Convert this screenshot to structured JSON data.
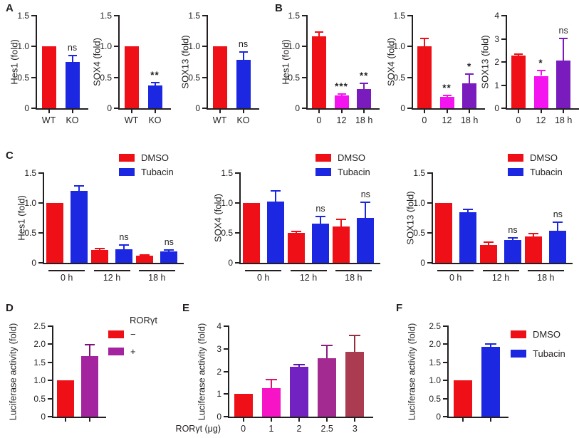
{
  "figure": {
    "panels": [
      "A",
      "B",
      "C",
      "D",
      "E",
      "F"
    ]
  },
  "colors": {
    "red": "#ee1016",
    "blue": "#1b27e0",
    "magenta": "#f414ef",
    "violet": "#7a1cbd",
    "purple": "#a424a0",
    "pink": "#f614c6",
    "plum": "#a32a90",
    "brick": "#aa3b50",
    "axis": "#231f20"
  },
  "chart_data": [
    {
      "panel": "A",
      "type": "bar",
      "ylabel": "Hes1 (fold)",
      "ylim": [
        0,
        1.5
      ],
      "tick_values": [
        0,
        0.5,
        1,
        1.5
      ],
      "tick_labels": [
        "0",
        "0.5",
        "1.0",
        "1.5"
      ],
      "categories": [
        "WT",
        "KO"
      ],
      "values": [
        1.0,
        0.75
      ],
      "errors": [
        0,
        0.1
      ],
      "sig": [
        "",
        "ns"
      ],
      "colors": [
        "#ee1016",
        "#1b27e0"
      ]
    },
    {
      "panel": "A",
      "type": "bar",
      "ylabel": "SOX4 (fold)",
      "ylim": [
        0,
        1.5
      ],
      "tick_values": [
        0,
        0.5,
        1,
        1.5
      ],
      "tick_labels": [
        "0",
        "0.5",
        "1.0",
        "1.5"
      ],
      "categories": [
        "WT",
        "KO"
      ],
      "values": [
        1.0,
        0.37
      ],
      "errors": [
        0,
        0.05
      ],
      "sig": [
        "",
        "**"
      ],
      "colors": [
        "#ee1016",
        "#1b27e0"
      ]
    },
    {
      "panel": "A",
      "type": "bar",
      "ylabel": "SOX13 (fold)",
      "ylim": [
        0,
        1.5
      ],
      "tick_values": [
        0,
        0.5,
        1,
        1.5
      ],
      "tick_labels": [
        "0",
        "0.5",
        "1.0",
        "1.5"
      ],
      "categories": [
        "WT",
        "KO"
      ],
      "values": [
        1.0,
        0.78
      ],
      "errors": [
        0,
        0.13
      ],
      "sig": [
        "",
        "ns"
      ],
      "colors": [
        "#ee1016",
        "#1b27e0"
      ]
    },
    {
      "panel": "B",
      "type": "bar",
      "ylabel": "Hes1 (fold)",
      "ylim": [
        0,
        1.5
      ],
      "tick_values": [
        0,
        0.5,
        1,
        1.5
      ],
      "tick_labels": [
        "0",
        "0.5",
        "1.0",
        "1.5"
      ],
      "categories": [
        "0",
        "12",
        "18 h"
      ],
      "values": [
        1.17,
        0.21,
        0.31
      ],
      "errors": [
        0.06,
        0.02,
        0.09
      ],
      "sig": [
        "",
        "***",
        "**"
      ],
      "colors": [
        "#ee1016",
        "#f414ef",
        "#7a1cbd"
      ]
    },
    {
      "panel": "B",
      "type": "bar",
      "ylabel": "SOX4 (fold)",
      "ylim": [
        0,
        1.5
      ],
      "tick_values": [
        0,
        0.5,
        1,
        1.5
      ],
      "tick_labels": [
        "0",
        "0.5",
        "1.0",
        "1.5"
      ],
      "categories": [
        "0",
        "12",
        "18 h"
      ],
      "values": [
        1.0,
        0.19,
        0.4
      ],
      "errors": [
        0.13,
        0.02,
        0.15
      ],
      "sig": [
        "",
        "**",
        "*"
      ],
      "colors": [
        "#ee1016",
        "#f414ef",
        "#7a1cbd"
      ]
    },
    {
      "panel": "B",
      "type": "bar",
      "ylabel": "SOX13 (fold)",
      "ylim": [
        0,
        4
      ],
      "tick_values": [
        0,
        1,
        2,
        3,
        4
      ],
      "tick_labels": [
        "0",
        "1",
        "2",
        "3",
        "4"
      ],
      "categories": [
        "0",
        "12",
        "18 h"
      ],
      "values": [
        2.27,
        1.4,
        2.05
      ],
      "errors": [
        0.07,
        0.22,
        0.97
      ],
      "sig": [
        "",
        "*",
        "ns"
      ],
      "colors": [
        "#ee1016",
        "#f414ef",
        "#7a1cbd"
      ]
    },
    {
      "panel": "C",
      "type": "bar",
      "ylabel": "Hes1 (fold)",
      "ylim": [
        0,
        1.5
      ],
      "tick_values": [
        0,
        0.5,
        1,
        1.5
      ],
      "tick_labels": [
        "0",
        "0.5",
        "1.0",
        "1.5"
      ],
      "categories": [
        "0 h",
        "12 h",
        "18 h"
      ],
      "group_labels": true,
      "series": [
        {
          "name": "DMSO",
          "color": "#ee1016",
          "values": [
            1.0,
            0.21,
            0.12
          ],
          "errors": [
            0,
            0.03,
            0.015
          ],
          "sig": [
            "",
            "",
            ""
          ]
        },
        {
          "name": "Tubacin",
          "color": "#1b27e0",
          "values": [
            1.2,
            0.23,
            0.19
          ],
          "errors": [
            0.08,
            0.07,
            0.03
          ],
          "sig": [
            "",
            "ns",
            "ns"
          ]
        }
      ],
      "legend": {
        "entries": [
          {
            "label": "DMSO",
            "color": "#ee1016"
          },
          {
            "label": "Tubacin",
            "color": "#1b27e0"
          }
        ]
      }
    },
    {
      "panel": "C",
      "type": "bar",
      "ylabel": "SOX4 (fold)",
      "ylim": [
        0,
        1.5
      ],
      "tick_values": [
        0,
        0.5,
        1,
        1.5
      ],
      "tick_labels": [
        "0",
        "0.5",
        "1.0",
        "1.5"
      ],
      "categories": [
        "0 h",
        "12 h",
        "18 h"
      ],
      "group_labels": true,
      "series": [
        {
          "name": "DMSO",
          "color": "#ee1016",
          "values": [
            1.0,
            0.5,
            0.61
          ],
          "errors": [
            0,
            0.02,
            0.12
          ],
          "sig": [
            "",
            "",
            ""
          ]
        },
        {
          "name": "Tubacin",
          "color": "#1b27e0",
          "values": [
            1.02,
            0.66,
            0.75
          ],
          "errors": [
            0.18,
            0.11,
            0.26
          ],
          "sig": [
            "",
            "ns",
            "ns"
          ]
        }
      ],
      "legend": {
        "entries": [
          {
            "label": "DMSO",
            "color": "#ee1016"
          },
          {
            "label": "Tubacin",
            "color": "#1b27e0"
          }
        ]
      }
    },
    {
      "panel": "C",
      "type": "bar",
      "ylabel": "SOX13 (fold)",
      "ylim": [
        0,
        1.5
      ],
      "tick_values": [
        0,
        0.5,
        1,
        1.5
      ],
      "tick_labels": [
        "0",
        "0.5",
        "1.0",
        "1.5"
      ],
      "categories": [
        "0 h",
        "12 h",
        "18 h"
      ],
      "group_labels": true,
      "series": [
        {
          "name": "DMSO",
          "color": "#ee1016",
          "values": [
            1.0,
            0.3,
            0.44
          ],
          "errors": [
            0,
            0.04,
            0.05
          ],
          "sig": [
            "",
            "",
            ""
          ]
        },
        {
          "name": "Tubacin",
          "color": "#1b27e0",
          "values": [
            0.85,
            0.38,
            0.54
          ],
          "errors": [
            0.04,
            0.04,
            0.14
          ],
          "sig": [
            "",
            "ns",
            "ns"
          ]
        }
      ],
      "legend": {
        "entries": [
          {
            "label": "DMSO",
            "color": "#ee1016"
          },
          {
            "label": "Tubacin",
            "color": "#1b27e0"
          }
        ]
      }
    },
    {
      "panel": "D",
      "type": "bar",
      "ylabel": "Luciferase activity (fold)",
      "ylim": [
        0,
        2.5
      ],
      "tick_values": [
        0,
        0.5,
        1,
        1.5,
        2,
        2.5
      ],
      "tick_labels": [
        "0",
        "0.5",
        "1.0",
        "1.5",
        "2.0",
        "2.5"
      ],
      "categories": [
        "",
        ""
      ],
      "values": [
        1.0,
        1.68
      ],
      "errors": [
        0,
        0.3
      ],
      "sig": [
        "",
        ""
      ],
      "colors": [
        "#ee1016",
        "#a424a0"
      ],
      "ecolors": [
        "",
        "#7c1379"
      ],
      "legend": {
        "title": "RORγt",
        "entries": [
          {
            "label": "−",
            "color": "#ee1016"
          },
          {
            "label": "+",
            "color": "#a424a0"
          }
        ]
      }
    },
    {
      "panel": "E",
      "type": "bar",
      "ylabel": "Luciferase activity (fold)",
      "ylim": [
        0,
        4
      ],
      "tick_values": [
        0,
        1,
        2,
        3,
        4
      ],
      "tick_labels": [
        "0",
        "1",
        "2",
        "3",
        "4"
      ],
      "xlabel": "RORγt (μg)",
      "categories": [
        "0",
        "1",
        "2",
        "2.5",
        "3"
      ],
      "values": [
        1.0,
        1.27,
        2.22,
        2.58,
        2.88
      ],
      "errors": [
        0,
        0.37,
        0.07,
        0.58,
        0.7
      ],
      "sig": [
        "",
        "",
        "",
        "",
        ""
      ],
      "colors": [
        "#ee1016",
        "#f614c6",
        "#7222c0",
        "#a32a90",
        "#aa3b50"
      ],
      "ecolors": [
        "",
        "#d81670",
        "#5a16a6",
        "#8c1f7e",
        "#963040"
      ]
    },
    {
      "panel": "F",
      "type": "bar",
      "ylabel": "Luciferase activity (fold)",
      "ylim": [
        0,
        2.5
      ],
      "tick_values": [
        0,
        0.5,
        1,
        1.5,
        2,
        2.5
      ],
      "tick_labels": [
        "0",
        "0.5",
        "1.0",
        "1.5",
        "2.0",
        "2.5"
      ],
      "categories": [
        "",
        ""
      ],
      "values": [
        1.0,
        1.92
      ],
      "errors": [
        0,
        0.08
      ],
      "sig": [
        "",
        ""
      ],
      "colors": [
        "#ee1016",
        "#1b27e0"
      ],
      "legend": {
        "entries": [
          {
            "label": "DMSO",
            "color": "#ee1016"
          },
          {
            "label": "Tubacin",
            "color": "#1b27e0"
          }
        ]
      }
    }
  ]
}
